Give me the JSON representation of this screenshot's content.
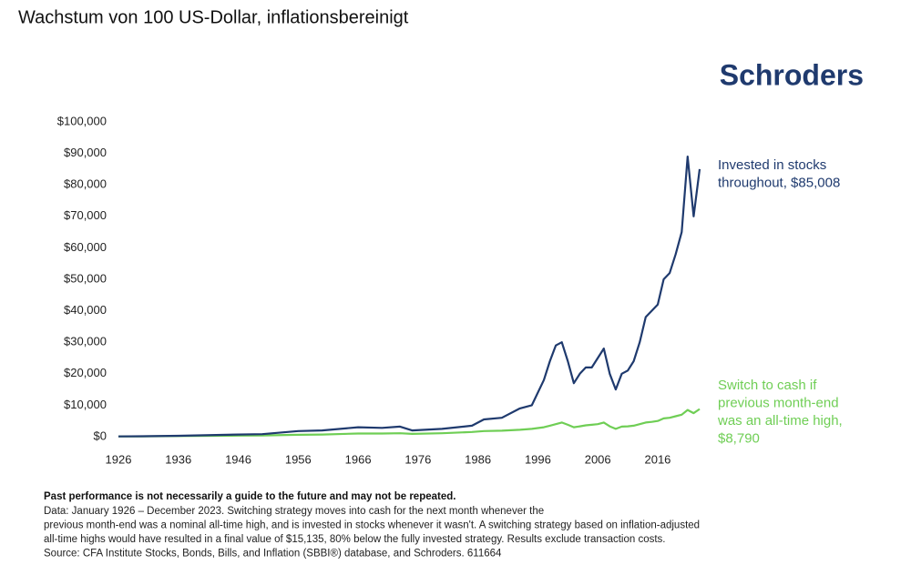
{
  "chart_data": {
    "type": "line",
    "title": "Wachstum von 100 US-Dollar, inflationsbereinigt",
    "logo": "Schroders",
    "x": [
      1926,
      1930,
      1936,
      1946,
      1950,
      1956,
      1960,
      1966,
      1970,
      1973,
      1975,
      1980,
      1985,
      1987,
      1990,
      1993,
      1995,
      1997,
      1998,
      1999,
      2000,
      2001,
      2002,
      2003,
      2004,
      2005,
      2006,
      2007,
      2008,
      2009,
      2010,
      2011,
      2012,
      2013,
      2014,
      2015,
      2016,
      2017,
      2018,
      2019,
      2020,
      2021,
      2022,
      2023
    ],
    "series": [
      {
        "name": "Invested in stocks throughout",
        "color": "#1f3a6e",
        "values": [
          100,
          150,
          300,
          700,
          800,
          1800,
          2000,
          3000,
          2800,
          3200,
          2000,
          2500,
          3500,
          5500,
          6000,
          9000,
          10000,
          18000,
          24000,
          29000,
          30000,
          24000,
          17000,
          20000,
          22000,
          22000,
          25000,
          28000,
          20000,
          15000,
          20000,
          21000,
          24000,
          30000,
          38000,
          40000,
          42000,
          50000,
          52000,
          58000,
          65000,
          89000,
          70000,
          85008
        ]
      },
      {
        "name": "Switch to cash if previous month-end was an all-time high",
        "color": "#6fce55",
        "values": [
          100,
          120,
          200,
          350,
          400,
          600,
          700,
          1000,
          1000,
          1100,
          900,
          1100,
          1500,
          1800,
          1900,
          2200,
          2500,
          3000,
          3500,
          4000,
          4500,
          3800,
          3000,
          3300,
          3600,
          3800,
          4000,
          4500,
          3300,
          2500,
          3200,
          3300,
          3500,
          4000,
          4500,
          4700,
          5000,
          5800,
          6000,
          6500,
          7000,
          8500,
          7500,
          8790
        ]
      }
    ],
    "annotations": [
      {
        "lines": [
          "Invested in stocks",
          "throughout, $85,008"
        ],
        "color": "#1f3a6e"
      },
      {
        "lines": [
          "Switch to cash if",
          "previous month-end",
          "was an all-time high,",
          "$8,790"
        ],
        "color": "#6fce55"
      }
    ],
    "xlim": [
      1926,
      2023
    ],
    "xticks": [
      1926,
      1936,
      1946,
      1956,
      1966,
      1976,
      1986,
      1996,
      2006,
      2016
    ],
    "ylim": [
      0,
      100000
    ],
    "yticks": [
      {
        "value": 0,
        "label": "$0"
      },
      {
        "value": 10000,
        "label": "$10,000"
      },
      {
        "value": 20000,
        "label": "$20,000"
      },
      {
        "value": 30000,
        "label": "$30,000"
      },
      {
        "value": 40000,
        "label": "$40,000"
      },
      {
        "value": 50000,
        "label": "$50,000"
      },
      {
        "value": 60000,
        "label": "$60,000"
      },
      {
        "value": 70000,
        "label": "$70,000"
      },
      {
        "value": 80000,
        "label": "$80,000"
      },
      {
        "value": 90000,
        "label": "$90,000"
      },
      {
        "value": 100000,
        "label": "$100,000"
      }
    ],
    "grid": false,
    "footnote": {
      "bold": "Past performance is not necessarily a guide to the future and may not be repeated.",
      "lines": [
        "Data: January 1926 – December 2023. Switching strategy moves into cash for the next month whenever the",
        "previous month-end was a nominal all-time high, and is invested in stocks whenever it wasn't. A switching strategy based on inflation-adjusted",
        "all-time highs would have resulted in a final value of $15,135, 80% below the fully invested strategy. Results exclude transaction costs.",
        "Source: CFA Institute Stocks, Bonds, Bills, and Inflation (SBBI®) database, and Schroders. 611664"
      ]
    }
  }
}
